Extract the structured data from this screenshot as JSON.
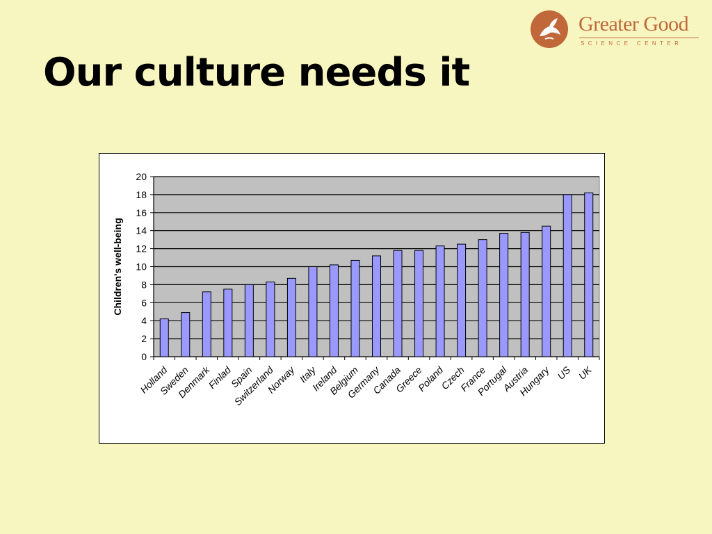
{
  "slide": {
    "title": "Our culture needs it"
  },
  "logo": {
    "name": "Greater Good",
    "subtitle": "SCIENCE CENTER",
    "brand_color": "#c0683a"
  },
  "chart_data": {
    "type": "bar",
    "title": "",
    "xlabel": "",
    "ylabel": "Children's well-being",
    "ylim": [
      0,
      20
    ],
    "yticks": [
      0,
      2,
      4,
      6,
      8,
      10,
      12,
      14,
      16,
      18,
      20
    ],
    "grid": true,
    "legend": "none",
    "plot_background": "#c0c0c0",
    "bar_color": "#9999ff",
    "categories": [
      "Holland",
      "Sweden",
      "Denmark",
      "Finlad",
      "Spain",
      "Switzerland",
      "Norway",
      "Italy",
      "Ireland",
      "Belgium",
      "Germany",
      "Canada",
      "Greece",
      "Poland",
      "Czech",
      "France",
      "Portugal",
      "Austria",
      "Hungary",
      "US",
      "UK"
    ],
    "values": [
      4.2,
      4.9,
      7.2,
      7.5,
      8.0,
      8.3,
      8.7,
      10.0,
      10.2,
      10.7,
      11.2,
      11.8,
      11.8,
      12.3,
      12.5,
      13.0,
      13.7,
      13.8,
      14.5,
      18.0,
      18.2
    ]
  }
}
